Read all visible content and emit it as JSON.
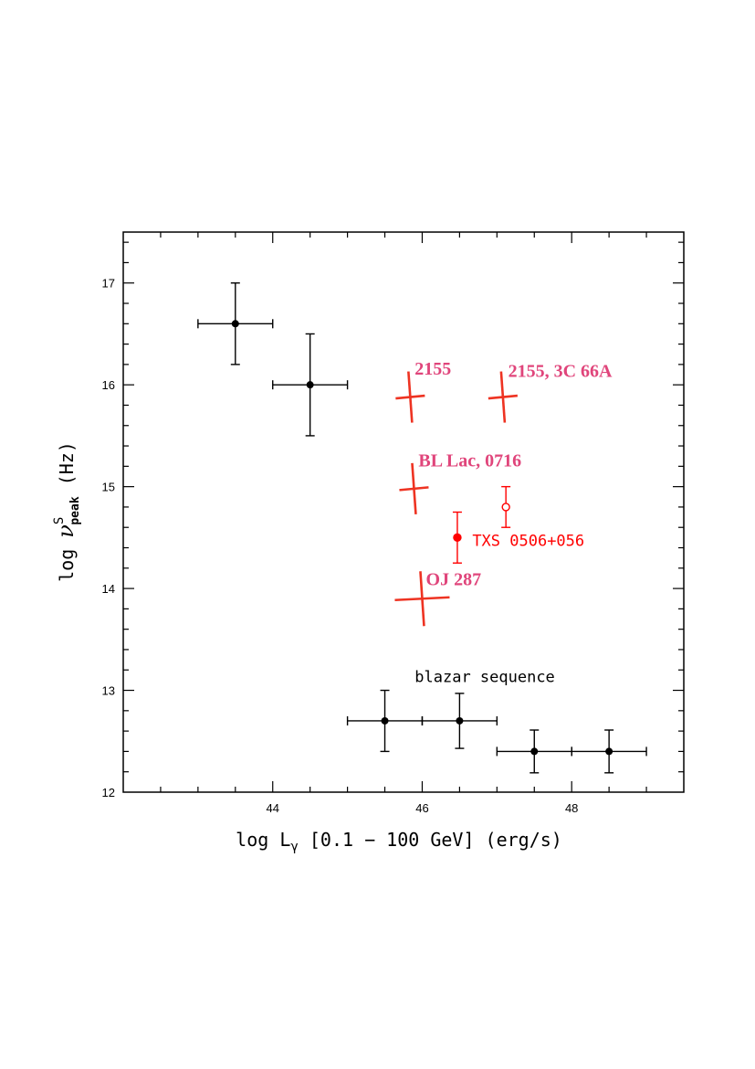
{
  "chart_data": {
    "type": "scatter",
    "title": "",
    "xlabel": "log Lγ [0.1 − 100 GeV] (erg/s)",
    "ylabel": "log ν^S_peak (Hz)",
    "xlabel_parts": {
      "pre": "log L",
      "sub": "γ",
      "post": " [0.1 − 100 GeV] (erg/s)"
    },
    "ylabel_parts": {
      "pre": "log ",
      "nu": "ν",
      "sup": "S",
      "sub": "peak",
      "post": " (Hz)"
    },
    "xlim": [
      42.0,
      49.5
    ],
    "ylim": [
      12,
      17.5
    ],
    "x_ticks": [
      44,
      46,
      48
    ],
    "x_tick_labels": [
      "44",
      "46",
      "48"
    ],
    "y_ticks": [
      12,
      13,
      14,
      15,
      16,
      17
    ],
    "y_tick_labels": [
      "12",
      "13",
      "14",
      "15",
      "16",
      "17"
    ],
    "grid": false,
    "series": [
      {
        "name": "blazar sequence",
        "color": "#000000",
        "points": [
          {
            "x": 43.5,
            "y": 16.6,
            "xerr": 0.5,
            "yerr": 0.4
          },
          {
            "x": 44.5,
            "y": 16.0,
            "xerr": 0.5,
            "yerr": 0.5
          },
          {
            "x": 45.5,
            "y": 12.7,
            "xerr": 0.5,
            "yerr": 0.3
          },
          {
            "x": 46.5,
            "y": 12.7,
            "xerr": 0.5,
            "yerr": 0.27
          },
          {
            "x": 47.5,
            "y": 12.4,
            "xerr": 0.5,
            "yerr": 0.21
          },
          {
            "x": 48.5,
            "y": 12.4,
            "xerr": 0.5,
            "yerr": 0.21
          }
        ]
      },
      {
        "name": "",
        "color": "#ee3322",
        "points": [
          {
            "x": 45.84,
            "y": 15.88
          },
          {
            "x": 47.08,
            "y": 15.88
          },
          {
            "x": 45.89,
            "y": 14.98
          },
          {
            "x": 46.0,
            "y": 13.9
          }
        ]
      },
      {
        "name": "TXS 0506+056",
        "color": "#ff0000",
        "points": [
          {
            "x": 46.47,
            "y": 14.5,
            "yerr": 0.25,
            "filled": true
          },
          {
            "x": 47.12,
            "y": 14.8,
            "yerr": 0.2,
            "filled": false
          }
        ]
      }
    ],
    "annotations": [
      {
        "text": "2155",
        "x": 45.9,
        "y": 16.1,
        "color": "#e0457b"
      },
      {
        "text": "2155, 3C 66A",
        "x": 47.15,
        "y": 16.08,
        "color": "#e0457b"
      },
      {
        "text": "BL Lac, 0716",
        "x": 45.95,
        "y": 15.2,
        "color": "#e0457b"
      },
      {
        "text": "OJ 287",
        "x": 46.05,
        "y": 14.03,
        "color": "#e0457b"
      },
      {
        "text": "TXS  0506+056",
        "x": 46.67,
        "y": 14.42,
        "color": "#ff0000"
      },
      {
        "text": "blazar sequence",
        "x": 45.9,
        "y": 13.08,
        "color": "#000000"
      }
    ]
  }
}
